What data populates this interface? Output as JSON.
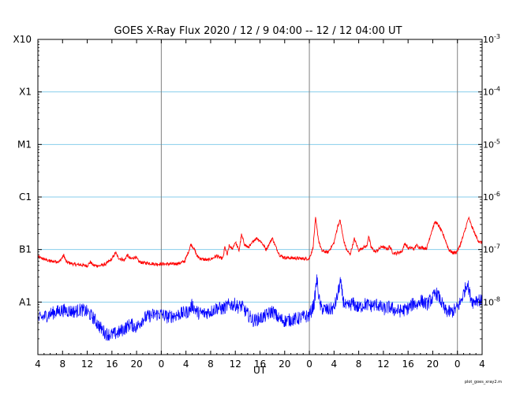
{
  "chart_data": {
    "type": "line",
    "title": "GOES X-Ray Flux   2020 / 12 /  9   04:00 -- 12 / 12   04:00   UT",
    "xlabel": "UT",
    "ylabel": "",
    "x_unit": "hours since 2020-12-09 00:00 UT",
    "xlim": [
      4,
      76
    ],
    "x_ticks": [
      4,
      8,
      12,
      16,
      20,
      24,
      28,
      32,
      36,
      40,
      44,
      48,
      52,
      56,
      60,
      64,
      68,
      72,
      76
    ],
    "x_tick_labels": [
      "4",
      "8",
      "12",
      "16",
      "20",
      "0",
      "4",
      "8",
      "12",
      "16",
      "20",
      "0",
      "4",
      "8",
      "12",
      "16",
      "20",
      "0",
      "4"
    ],
    "day_boundaries": [
      24,
      48,
      72
    ],
    "yscale": "log",
    "ylim": [
      1e-09,
      0.001
    ],
    "left_ticks": [
      {
        "value": 1e-08,
        "label": "A1"
      },
      {
        "value": 1e-07,
        "label": "B1"
      },
      {
        "value": 1e-06,
        "label": "C1"
      },
      {
        "value": 1e-05,
        "label": "M1"
      },
      {
        "value": 0.0001,
        "label": "X1"
      },
      {
        "value": 0.001,
        "label": "X10"
      }
    ],
    "right_ticks": [
      {
        "value": 1e-08,
        "base": "10",
        "exp": "-8"
      },
      {
        "value": 1e-07,
        "base": "10",
        "exp": "-7"
      },
      {
        "value": 1e-06,
        "base": "10",
        "exp": "-6"
      },
      {
        "value": 1e-05,
        "base": "10",
        "exp": "-5"
      },
      {
        "value": 0.0001,
        "base": "10",
        "exp": "-4"
      },
      {
        "value": 0.001,
        "base": "10",
        "exp": "-3"
      }
    ],
    "grid_lines": [
      1e-08,
      1e-07,
      1e-06,
      1e-05,
      0.0001
    ],
    "series": [
      {
        "name": "",
        "color": "#ff0000",
        "points": [
          [
            4,
            7.2e-08
          ],
          [
            6,
            6e-08
          ],
          [
            7.5,
            5.9e-08
          ],
          [
            8.2,
            7.8e-08
          ],
          [
            8.6,
            5.8e-08
          ],
          [
            10,
            5.2e-08
          ],
          [
            11,
            5.1e-08
          ],
          [
            12,
            4.9e-08
          ],
          [
            12.5,
            5.8e-08
          ],
          [
            13,
            5e-08
          ],
          [
            14,
            4.9e-08
          ],
          [
            15,
            5.3e-08
          ],
          [
            16,
            6.6e-08
          ],
          [
            16.6,
            8.8e-08
          ],
          [
            17,
            7e-08
          ],
          [
            18,
            6.2e-08
          ],
          [
            18.5,
            7.9e-08
          ],
          [
            19,
            6.6e-08
          ],
          [
            19.8,
            7.2e-08
          ],
          [
            20.4,
            5.9e-08
          ],
          [
            21,
            5.6e-08
          ],
          [
            22,
            5.5e-08
          ],
          [
            23,
            5.3e-08
          ],
          [
            24,
            5.3e-08
          ],
          [
            25,
            5.3e-08
          ],
          [
            26,
            5.3e-08
          ],
          [
            27,
            5.5e-08
          ],
          [
            27.8,
            6e-08
          ],
          [
            28.4,
            9e-08
          ],
          [
            28.8,
            1.26e-07
          ],
          [
            29.3,
            1.05e-07
          ],
          [
            29.8,
            7.5e-08
          ],
          [
            30.5,
            6.6e-08
          ],
          [
            31.5,
            6.3e-08
          ],
          [
            32.3,
            6.8e-08
          ],
          [
            33,
            7.6e-08
          ],
          [
            33.5,
            6.9e-08
          ],
          [
            34,
            6.8e-08
          ],
          [
            34.3,
            1.12e-07
          ],
          [
            34.7,
            7.8e-08
          ],
          [
            35,
            1.18e-07
          ],
          [
            35.5,
            1.02e-07
          ],
          [
            36,
            1.4e-07
          ],
          [
            36.6,
            9.5e-08
          ],
          [
            37,
            1.9e-07
          ],
          [
            37.5,
            1.25e-07
          ],
          [
            38,
            1.1e-07
          ],
          [
            38.5,
            1.2e-07
          ],
          [
            39,
            1.5e-07
          ],
          [
            39.5,
            1.65e-07
          ],
          [
            40.2,
            1.4e-07
          ],
          [
            41,
            1e-07
          ],
          [
            41.6,
            1.35e-07
          ],
          [
            42,
            1.65e-07
          ],
          [
            42.6,
            1.1e-07
          ],
          [
            43.2,
            7.8e-08
          ],
          [
            44,
            7e-08
          ],
          [
            45,
            6.9e-08
          ],
          [
            46,
            6.8e-08
          ],
          [
            47,
            6.7e-08
          ],
          [
            48,
            6.7e-08
          ],
          [
            48.6,
            1.1e-07
          ],
          [
            49,
            3.9e-07
          ],
          [
            49.5,
            1.5e-07
          ],
          [
            50,
            9.5e-08
          ],
          [
            51,
            8.8e-08
          ],
          [
            52,
            1.35e-07
          ],
          [
            52.6,
            2.8e-07
          ],
          [
            53,
            3.6e-07
          ],
          [
            53.5,
            1.6e-07
          ],
          [
            54,
            1e-07
          ],
          [
            54.6,
            8e-08
          ],
          [
            55.3,
            1.6e-07
          ],
          [
            56,
            9.6e-08
          ],
          [
            56.7,
            1.1e-07
          ],
          [
            57.3,
            1.15e-07
          ],
          [
            57.6,
            1.82e-07
          ],
          [
            58,
            1.1e-07
          ],
          [
            58.7,
            9e-08
          ],
          [
            59.2,
            1e-07
          ],
          [
            59.8,
            1.15e-07
          ],
          [
            60.3,
            1.05e-07
          ],
          [
            60.8,
            1.04e-07
          ],
          [
            61,
            1.15e-07
          ],
          [
            61.5,
            8.8e-08
          ],
          [
            62,
            8.4e-08
          ],
          [
            63,
            9.2e-08
          ],
          [
            63.5,
            1.32e-07
          ],
          [
            64,
            1.05e-07
          ],
          [
            64.5,
            1.08e-07
          ],
          [
            65,
            1.02e-07
          ],
          [
            65.3,
            1.22e-07
          ],
          [
            65.8,
            1.1e-07
          ],
          [
            66.2,
            1.09e-07
          ],
          [
            67,
            1.05e-07
          ],
          [
            67.8,
            2.2e-07
          ],
          [
            68.4,
            3.4e-07
          ],
          [
            69,
            2.8e-07
          ],
          [
            69.8,
            1.8e-07
          ],
          [
            70.6,
            1e-07
          ],
          [
            71.2,
            8.7e-08
          ],
          [
            71.8,
            8.8e-08
          ],
          [
            72.3,
            1.1e-07
          ],
          [
            73,
            1.9e-07
          ],
          [
            73.8,
            4e-07
          ],
          [
            74.3,
            2.8e-07
          ],
          [
            75,
            1.8e-07
          ],
          [
            75.5,
            1.4e-07
          ],
          [
            76,
            1.35e-07
          ]
        ]
      },
      {
        "name": "",
        "color": "#0000ff",
        "points": [
          [
            4,
            4.7e-09
          ],
          [
            5,
            5.3e-09
          ],
          [
            6,
            6e-09
          ],
          [
            7,
            6.5e-09
          ],
          [
            8,
            7e-09
          ],
          [
            9,
            6.8e-09
          ],
          [
            10,
            6.6e-09
          ],
          [
            11,
            7.2e-09
          ],
          [
            12,
            6.5e-09
          ],
          [
            13,
            5e-09
          ],
          [
            14,
            3.4e-09
          ],
          [
            15,
            2.5e-09
          ],
          [
            16,
            2.4e-09
          ],
          [
            17,
            2.6e-09
          ],
          [
            18,
            3.1e-09
          ],
          [
            19,
            3.8e-09
          ],
          [
            20,
            3.3e-09
          ],
          [
            21,
            4.8e-09
          ],
          [
            22,
            5.4e-09
          ],
          [
            23,
            5.8e-09
          ],
          [
            24,
            5.9e-09
          ],
          [
            25,
            5.2e-09
          ],
          [
            26,
            5.5e-09
          ],
          [
            27,
            5.9e-09
          ],
          [
            28,
            6.4e-09
          ],
          [
            28.5,
            6.7e-09
          ],
          [
            29,
            8.8e-09
          ],
          [
            29.5,
            7.2e-09
          ],
          [
            30,
            6.2e-09
          ],
          [
            31,
            6.1e-09
          ],
          [
            32,
            6.6e-09
          ],
          [
            33,
            7.8e-09
          ],
          [
            34,
            7.4e-09
          ],
          [
            35,
            8.9e-09
          ],
          [
            36,
            9e-09
          ],
          [
            36.5,
            8e-09
          ],
          [
            37,
            8.5e-09
          ],
          [
            38,
            5.8e-09
          ],
          [
            39,
            4.4e-09
          ],
          [
            40,
            4.9e-09
          ],
          [
            41,
            5.5e-09
          ],
          [
            42,
            6.8e-09
          ],
          [
            43,
            4.9e-09
          ],
          [
            44,
            4.4e-09
          ],
          [
            45,
            4.6e-09
          ],
          [
            46,
            4.8e-09
          ],
          [
            47,
            5.2e-09
          ],
          [
            48,
            5.5e-09
          ],
          [
            48.8,
            9.5e-09
          ],
          [
            49.2,
            2.8e-08
          ],
          [
            49.7,
            9e-09
          ],
          [
            50,
            7.6e-09
          ],
          [
            51,
            7e-09
          ],
          [
            52,
            7.7e-09
          ],
          [
            52.6,
            1.35e-08
          ],
          [
            53,
            2.5e-08
          ],
          [
            53.5,
            1.05e-08
          ],
          [
            54,
            7.8e-09
          ],
          [
            55,
            9.5e-09
          ],
          [
            56,
            7.7e-09
          ],
          [
            57,
            9.2e-09
          ],
          [
            58,
            8.5e-09
          ],
          [
            59,
            9e-09
          ],
          [
            60,
            7.3e-09
          ],
          [
            61,
            8e-09
          ],
          [
            62,
            6.9e-09
          ],
          [
            63,
            6.8e-09
          ],
          [
            64,
            7.6e-09
          ],
          [
            65,
            9.6e-09
          ],
          [
            65.5,
            8.8e-09
          ],
          [
            66,
            1.1e-08
          ],
          [
            67,
            9e-09
          ],
          [
            68,
            1.2e-08
          ],
          [
            68.5,
            1.5e-08
          ],
          [
            69,
            1.25e-08
          ],
          [
            70,
            6.8e-09
          ],
          [
            71,
            6.4e-09
          ],
          [
            72,
            7.8e-09
          ],
          [
            72.5,
            1e-08
          ],
          [
            73,
            1.45e-08
          ],
          [
            73.6,
            2.4e-08
          ],
          [
            74,
            1.4e-08
          ],
          [
            74.5,
            1e-08
          ],
          [
            75,
            1.12e-08
          ],
          [
            75.5,
            1.12e-08
          ],
          [
            76,
            1e-08
          ]
        ]
      }
    ],
    "footer": "plot_goes_xray2.m"
  },
  "colors": {
    "red": "#ff0000",
    "blue": "#0000ff",
    "grid": "#87ceeb",
    "day_line": "#808080"
  }
}
